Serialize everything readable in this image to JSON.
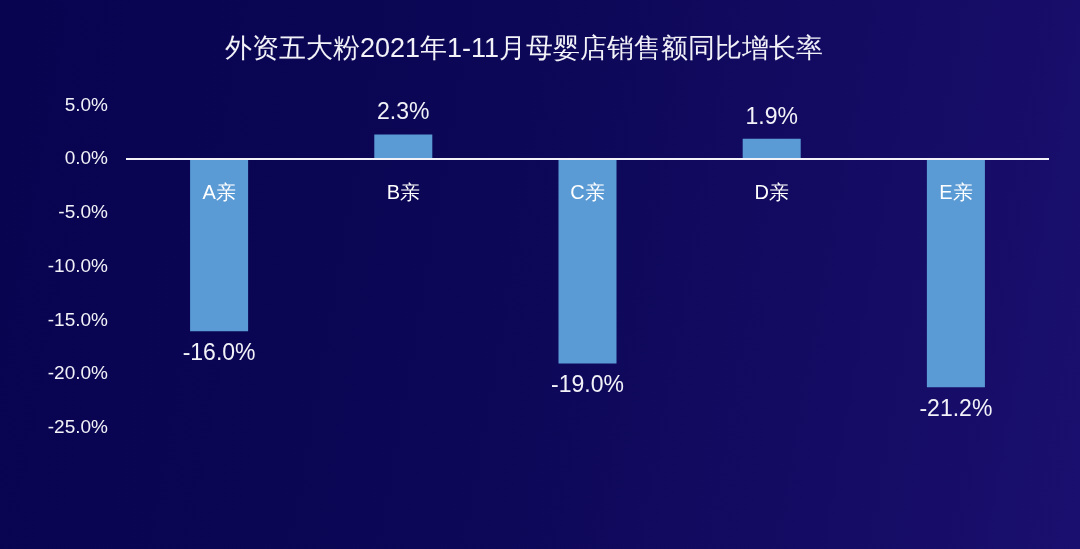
{
  "chart_data": {
    "type": "bar",
    "title": "外资五大粉2021年1-11月母婴店销售额同比增长率",
    "categories": [
      "A亲",
      "B亲",
      "C亲",
      "D亲",
      "E亲"
    ],
    "values": [
      -16.0,
      2.3,
      -19.0,
      1.9,
      -21.2
    ],
    "value_labels": [
      "-16.0%",
      "2.3%",
      "-19.0%",
      "1.9%",
      "-21.2%"
    ],
    "color": "#5b9bd5",
    "ylim": [
      -25,
      5
    ],
    "yticks": [
      {
        "value": 5,
        "label": "5.0%"
      },
      {
        "value": 0,
        "label": "0.0%"
      },
      {
        "value": -5,
        "label": "-5.0%"
      },
      {
        "value": -10,
        "label": "-10.0%"
      },
      {
        "value": -15,
        "label": "-15.0%"
      },
      {
        "value": -20,
        "label": "-20.0%"
      },
      {
        "value": -25,
        "label": "-25.0%"
      }
    ],
    "grid": false,
    "legend": false
  }
}
